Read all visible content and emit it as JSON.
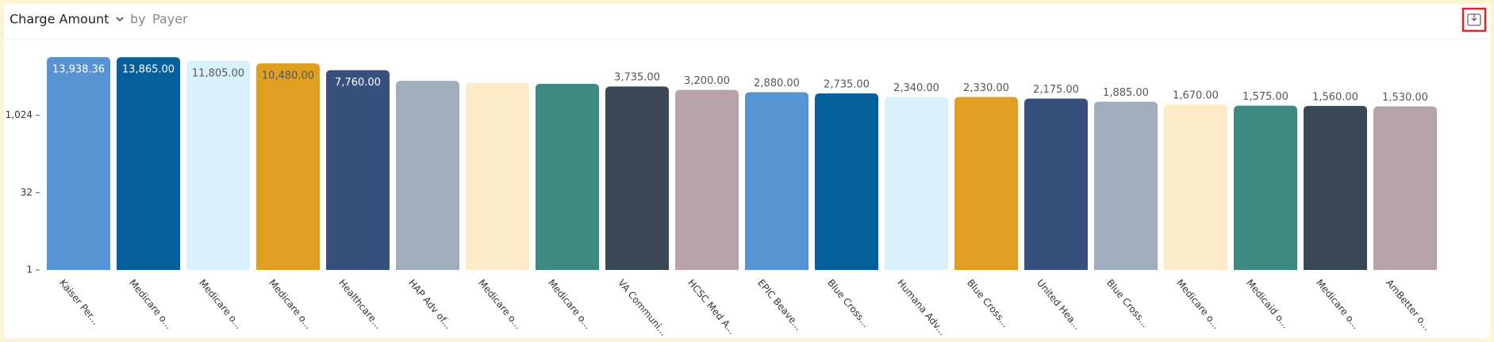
{
  "chart_data": {
    "type": "bar",
    "title": "Charge Amount",
    "group_by_label": "by",
    "group_by": "Payer",
    "categories": [
      "Kaiser Per...",
      "Medicare o...",
      "Medicare o...",
      "Medicare o...",
      "Healthcare...",
      "HAP Adv of...",
      "Medicare o...",
      "Medicare o...",
      "VA Communi...",
      "HCSC Med A...",
      "EPIC Beave...",
      "Blue Cross...",
      "Humana Adv...",
      "Blue Cross...",
      "United Hea...",
      "Blue Cross...",
      "Medicare o...",
      "Medicaid o...",
      "Medicare o...",
      "AmBetter o..."
    ],
    "values": [
      13938.36,
      13865,
      11805,
      10480,
      7760,
      4800,
      4400,
      4200,
      3735,
      3200,
      2880,
      2735,
      2340,
      2330,
      2175,
      1885,
      1670,
      1575,
      1560,
      1530
    ],
    "value_labels": [
      "13,938.36",
      "13,865.00",
      "11,805.00",
      "10,480.00",
      "7,760.00",
      null,
      null,
      null,
      "3,735.00",
      "3,200.00",
      "2,880.00",
      "2,735.00",
      "2,340.00",
      "2,330.00",
      "2,175.00",
      "1,885.00",
      "1,670.00",
      "1,575.00",
      "1,560.00",
      "1,530.00"
    ],
    "colors": [
      "#5593d3",
      "#045f9b",
      "#d8f1fd",
      "#e09f20",
      "#38507d",
      "#a0adbd",
      "#fdebc8",
      "#3d8a80",
      "#3a4755",
      "#b9a3ab",
      "#5593d3",
      "#045f9b",
      "#d8f1fd",
      "#e09f20",
      "#38507d",
      "#a0adbd",
      "#fdebc8",
      "#3d8a80",
      "#3a4755",
      "#b9a3ab"
    ],
    "log_scale": true,
    "ylim": [
      1,
      32768
    ],
    "yticks": [
      1,
      32,
      {
        "value": 1024,
        "label": "1,024"
      }
    ],
    "grid": false
  }
}
